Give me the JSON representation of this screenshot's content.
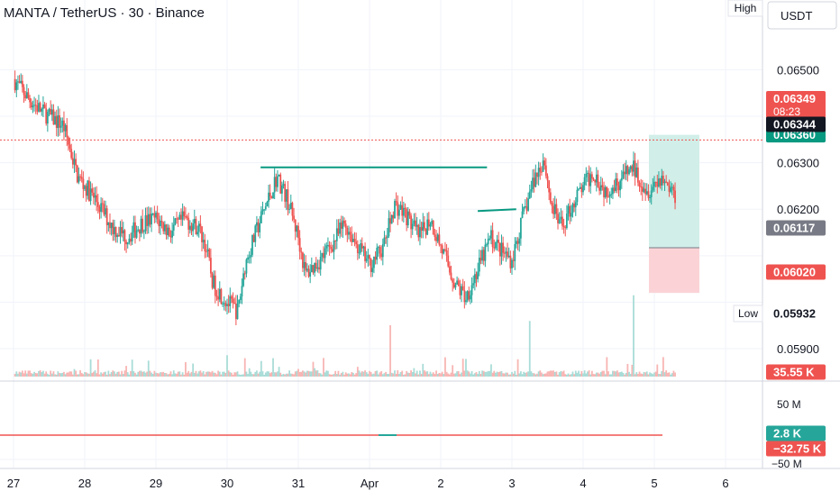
{
  "header": {
    "title": "MANTA / TetherUS · 30 · Binance",
    "currency": "USDT",
    "high_label": "High",
    "low_label": "Low"
  },
  "price_labels": {
    "high": "0.06360",
    "last": "0.06349",
    "countdown": "08:23",
    "bid": "0.06344",
    "entry": "0.06117",
    "stop": "0.06020",
    "low": "0.05932"
  },
  "volume_label": "35.55 K",
  "osc_labels": {
    "top": "50 M",
    "pos": "2.8 K",
    "neg": "−32.75 K",
    "bottom": "−50 M"
  },
  "colors": {
    "up": "#26a69a",
    "down": "#ef5350",
    "drawn_line": "#089981",
    "target_zone": "#d1eee8",
    "stop_zone": "#fbd3d7"
  },
  "chart_data": {
    "type": "candlestick",
    "symbol": "MANTA / TetherUS",
    "interval": "30",
    "exchange": "Binance",
    "x_ticks": [
      "27",
      "28",
      "29",
      "30",
      "31",
      "Apr",
      "2",
      "3",
      "4",
      "5",
      "6"
    ],
    "y_ticks": [
      0.065,
      0.064,
      0.063,
      0.062,
      0.061,
      0.06,
      0.059
    ],
    "y_tick_labels": [
      "0.06500",
      "0.06400",
      "0.06300",
      "0.06200",
      "0.06100",
      "0.06000",
      "0.05900"
    ],
    "ylim": [
      0.0584,
      0.0665
    ],
    "grid": true,
    "close_path": [
      [
        27.0,
        0.0648
      ],
      [
        27.2,
        0.0644
      ],
      [
        27.4,
        0.0641
      ],
      [
        27.7,
        0.0638
      ],
      [
        27.9,
        0.0627
      ],
      [
        28.15,
        0.0622
      ],
      [
        28.4,
        0.0616
      ],
      [
        28.6,
        0.0614
      ],
      [
        28.8,
        0.0617
      ],
      [
        29.0,
        0.0618
      ],
      [
        29.2,
        0.0615
      ],
      [
        29.4,
        0.0618
      ],
      [
        29.6,
        0.0616
      ],
      [
        29.7,
        0.0612
      ],
      [
        29.8,
        0.0604
      ],
      [
        30.0,
        0.06
      ],
      [
        30.15,
        0.0598
      ],
      [
        30.25,
        0.0608
      ],
      [
        30.45,
        0.0617
      ],
      [
        30.6,
        0.0623
      ],
      [
        30.7,
        0.0627
      ],
      [
        30.85,
        0.0622
      ],
      [
        31.0,
        0.0614
      ],
      [
        31.1,
        0.0606
      ],
      [
        31.3,
        0.0609
      ],
      [
        31.5,
        0.0613
      ],
      [
        31.65,
        0.0617
      ],
      [
        31.8,
        0.0613
      ],
      [
        32.0,
        0.0608
      ],
      [
        32.2,
        0.0612
      ],
      [
        32.35,
        0.0621
      ],
      [
        32.5,
        0.0619
      ],
      [
        32.7,
        0.0614
      ],
      [
        32.85,
        0.0618
      ],
      [
        33.0,
        0.0612
      ],
      [
        33.2,
        0.0604
      ],
      [
        33.35,
        0.0601
      ],
      [
        33.55,
        0.0608
      ],
      [
        33.7,
        0.0614
      ],
      [
        33.85,
        0.0611
      ],
      [
        34.0,
        0.0609
      ],
      [
        34.15,
        0.0618
      ],
      [
        34.3,
        0.0626
      ],
      [
        34.45,
        0.0631
      ],
      [
        34.55,
        0.0621
      ],
      [
        34.7,
        0.0616
      ],
      [
        34.85,
        0.0621
      ],
      [
        35.0,
        0.0625
      ],
      [
        35.15,
        0.0628
      ],
      [
        35.3,
        0.0624
      ],
      [
        35.5,
        0.0626
      ],
      [
        35.7,
        0.0629
      ],
      [
        35.9,
        0.0624
      ],
      [
        36.1,
        0.0627
      ],
      [
        36.3,
        0.0623
      ]
    ],
    "target_line": 0.0636,
    "entry": 0.06117,
    "stop": 0.0602,
    "last_price": 0.06349,
    "high": 0.0636,
    "low": 0.05932,
    "horizontal_line": 0.0629,
    "support_line": 0.062,
    "volume_last": "35.55 K",
    "volume_spikes": [
      [
        30.0,
        0.25
      ],
      [
        32.3,
        0.6
      ],
      [
        34.25,
        0.65
      ],
      [
        35.7,
        0.95
      ]
    ]
  }
}
